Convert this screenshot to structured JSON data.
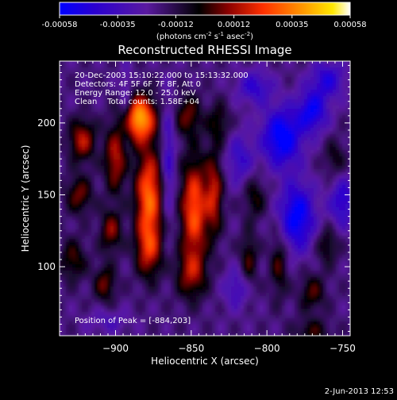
{
  "colorbar": {
    "ticks": [
      "-0.00058",
      "-0.00035",
      "-0.00012",
      "0.00012",
      "0.00035",
      "0.00058"
    ],
    "unit_base": "(photons cm",
    "unit_exp1": "-2",
    "unit_mid": " s",
    "unit_exp2": "-1",
    "unit_mid2": " asec",
    "unit_exp3": "-2",
    "unit_end": ")",
    "colors": [
      "#0000ff",
      "#2a00d0",
      "#5a1aa0",
      "#000000",
      "#8a0000",
      "#ff3000",
      "#ff9a00",
      "#ffe800",
      "#ffffff"
    ]
  },
  "info": {
    "line1": "20-Dec-2003 15:10:22.000 to 15:13:32.000",
    "line2": "Detectors: 4F 5F 6F 7F 8F, Att 0",
    "line3": "Energy Range: 12.0 - 25.0 keV",
    "line4": "Clean    Total counts: 1.58E+04",
    "peak": "Position of Peak = [-884,203]"
  },
  "footer_date": "2-Jun-2013 12:53",
  "chart_data": {
    "type": "heatmap",
    "title": "Reconstructed RHESSI Image",
    "xlabel": "Heliocentric X (arcsec)",
    "ylabel": "Heliocentric Y (arcsec)",
    "xlim": [
      -937,
      -745
    ],
    "ylim": [
      52,
      243
    ],
    "xticks": [
      -900,
      -850,
      -800,
      -750
    ],
    "yticks": [
      100,
      150,
      200
    ],
    "colorbar_range": [
      -0.00058,
      0.00058
    ],
    "peak_position": [
      -884,
      203
    ]
  }
}
